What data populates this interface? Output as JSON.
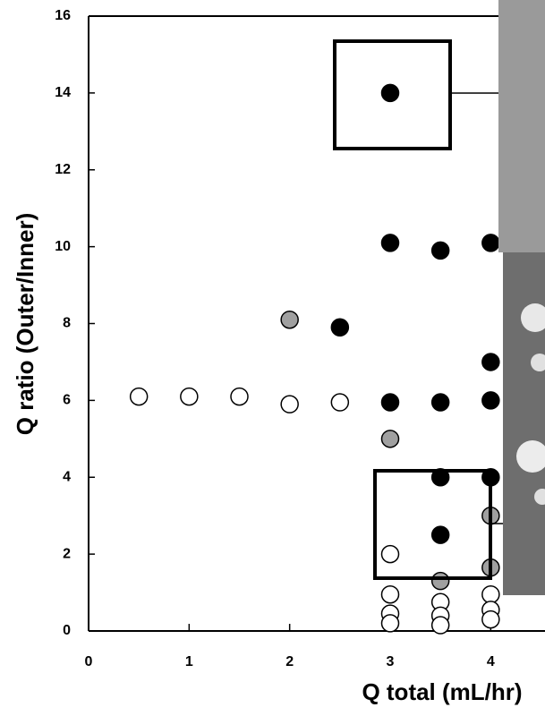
{
  "chart_data": {
    "type": "scatter",
    "x_label": "Q total (mL/hr)",
    "y_label": "Q ratio (Outer/Inner)",
    "xlim": [
      0,
      4.54
    ],
    "xticks": [
      0,
      1,
      2,
      3,
      4
    ],
    "ylim": [
      0,
      16
    ],
    "yticks": [
      0,
      2,
      4,
      6,
      8,
      10,
      12,
      14,
      16
    ],
    "grid": false,
    "series": [
      {
        "color": "#ffffff",
        "x": [
          0.5,
          1,
          1.5,
          2,
          2.5,
          3,
          3,
          3,
          3,
          3.5,
          3.5,
          3.5,
          4,
          4,
          4
        ],
        "values": [
          6.1,
          6.1,
          6.1,
          5.9,
          5.95,
          2.0,
          0.95,
          0.45,
          0.2,
          0.75,
          0.4,
          0.15,
          0.95,
          0.55,
          0.3
        ]
      },
      {
        "color": "#a0a0a0",
        "x": [
          2,
          3,
          3.5,
          4,
          4
        ],
        "values": [
          8.1,
          5.0,
          1.3,
          3.0,
          1.65
        ]
      },
      {
        "color": "#000000",
        "x": [
          3,
          3,
          3.5,
          4,
          2.5,
          4,
          3,
          3.5,
          4,
          3.5,
          4,
          3.5
        ],
        "values": [
          14,
          10.1,
          9.9,
          10.1,
          7.9,
          7.0,
          5.95,
          5.95,
          6.0,
          4.0,
          4.0,
          2.5
        ]
      }
    ]
  }
}
